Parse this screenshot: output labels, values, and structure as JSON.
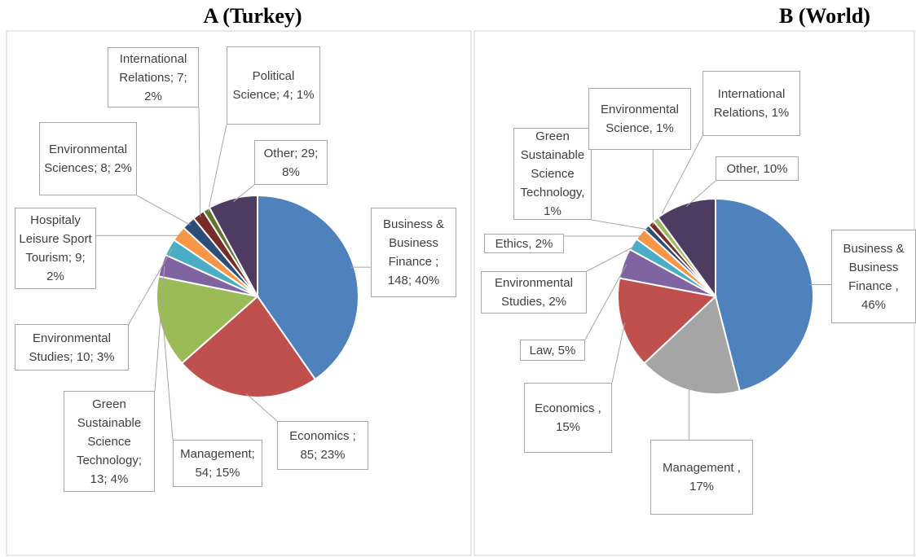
{
  "chart_data": [
    {
      "type": "pie",
      "title": "A (Turkey)",
      "values": [
        148,
        85,
        54,
        13,
        10,
        9,
        8,
        7,
        4,
        29
      ],
      "value_labels": [
        "Business & Business Finance ; 148; 40%",
        "Economics ; 85; 23%",
        "Management; 54; 15%",
        "Green Sustainable Science Technology; 13; 4%",
        "Environmental Studies; 10; 3%",
        "Hospitaly Leisure Sport Tourism; 9; 2%",
        "Environmental Sciences; 8; 2%",
        "International Relations; 7; 2%",
        "Political Science; 4; 1%",
        "Other; 29; 8%"
      ],
      "colors": [
        "#4f81bd",
        "#c0504d",
        "#9bbb59",
        "#8064a2",
        "#4bacc6",
        "#f79646",
        "#2c4d75",
        "#772c2a",
        "#5f7530",
        "#4d3b62"
      ]
    },
    {
      "type": "pie",
      "title": "B (World)",
      "values": [
        46,
        17,
        15,
        5,
        2,
        2,
        1,
        1,
        1,
        10
      ],
      "value_labels": [
        "Business & Business Finance , 46%",
        "Management , 17%",
        "Economics , 15%",
        "Law, 5%",
        "Environmental Studies, 2%",
        "Ethics, 2%",
        "Green Sustainable Science Technology, 1%",
        "Environmental Science, 1%",
        "International Relations, 1%",
        "Other, 10%"
      ],
      "colors": [
        "#4f81bd",
        "#a5a5a5",
        "#c0504d",
        "#8064a2",
        "#4bacc6",
        "#f79646",
        "#2c4d75",
        "#772c2a",
        "#9bbb59",
        "#4d3b62"
      ]
    }
  ]
}
